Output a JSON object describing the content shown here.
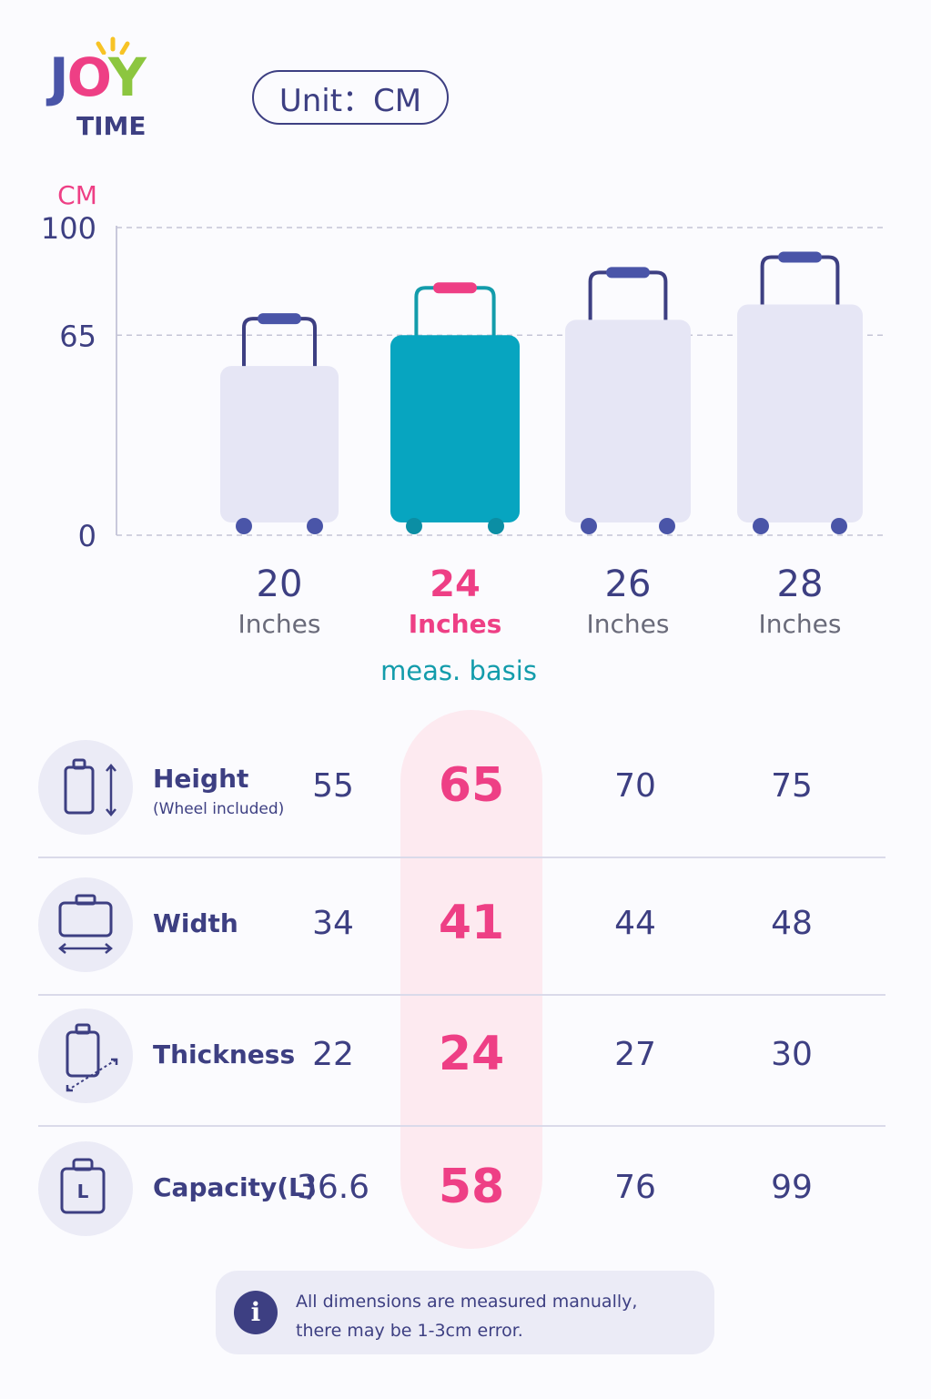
{
  "brand": {
    "logo_line1": "JOY",
    "logo_line2": "TIME"
  },
  "unit_label": "Unit：CM",
  "chart_data": {
    "type": "bar",
    "title": "",
    "ylabel": "CM",
    "ylim": [
      0,
      100
    ],
    "yticks": [
      "100",
      "65",
      "0"
    ],
    "categories": [
      "20",
      "24",
      "26",
      "28"
    ],
    "category_unit": "Inches",
    "values": [
      55,
      65,
      70,
      75
    ],
    "highlight_index": 1,
    "highlight_note": "meas. basis",
    "grid": "dashed"
  },
  "colors": {
    "highlight": "#ee3f85",
    "teal": "#07a5c0",
    "navy": "#3d3f82",
    "luggage": "#e6e6f5"
  },
  "table": {
    "rows": [
      {
        "label": "Height",
        "sublabel": "(Wheel included)",
        "icon": "luggage-height-icon",
        "values": [
          "55",
          "65",
          "70",
          "75"
        ]
      },
      {
        "label": "Width",
        "sublabel": "",
        "icon": "luggage-width-icon",
        "values": [
          "34",
          "41",
          "44",
          "48"
        ]
      },
      {
        "label": "Thickness",
        "sublabel": "",
        "icon": "luggage-thickness-icon",
        "values": [
          "22",
          "24",
          "27",
          "30"
        ]
      },
      {
        "label": "Capacity(L)",
        "sublabel": "",
        "icon": "luggage-capacity-icon",
        "values": [
          "36.6",
          "58",
          "76",
          "99"
        ]
      }
    ]
  },
  "note": {
    "icon": "info-icon",
    "line1": "All dimensions are measured manually,",
    "line2": "there may be 1-3cm error."
  }
}
